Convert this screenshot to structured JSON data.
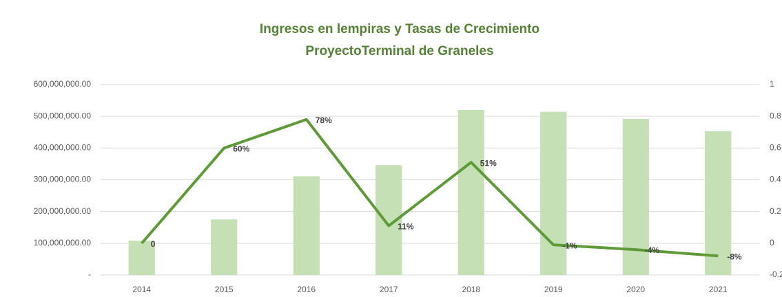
{
  "chart_data": {
    "type": "bar-line",
    "title": "Ingresos en lempiras  y Tasas de Crecimiento",
    "subtitle": "ProyectoTerminal de Graneles",
    "categories": [
      "2014",
      "2015",
      "2016",
      "2017",
      "2018",
      "2019",
      "2020",
      "2021"
    ],
    "series": [
      {
        "type": "bar",
        "color": "#c5e0b4",
        "values": [
          108000000,
          175000000,
          311000000,
          346000000,
          520000000,
          514000000,
          492000000,
          453000000
        ]
      },
      {
        "type": "line",
        "axis": "y2",
        "color": "#5e9a38",
        "values": [
          0,
          0.6,
          0.78,
          0.11,
          0.51,
          -0.01,
          -0.04,
          -0.08
        ],
        "value_labels": [
          "0",
          "60%",
          "78%",
          "11%",
          "51%",
          "-1%",
          "-4%",
          "-8%"
        ]
      }
    ],
    "ylim": [
      0,
      600000000
    ],
    "yticks": [
      {
        "value": 0,
        "label": "-"
      },
      {
        "value": 100000000,
        "label": "100,000,000.00"
      },
      {
        "value": 200000000,
        "label": "200,000,000.00"
      },
      {
        "value": 300000000,
        "label": "300,000,000.00"
      },
      {
        "value": 400000000,
        "label": "400,000,000.00"
      },
      {
        "value": 500000000,
        "label": "500,000,000.00"
      },
      {
        "value": 600000000,
        "label": "600,000,000.00"
      }
    ],
    "y2lim": [
      -0.2,
      1
    ],
    "y2ticks": [
      -0.2,
      0,
      0.2,
      0.4,
      0.6,
      0.8,
      1
    ],
    "grid": true
  }
}
